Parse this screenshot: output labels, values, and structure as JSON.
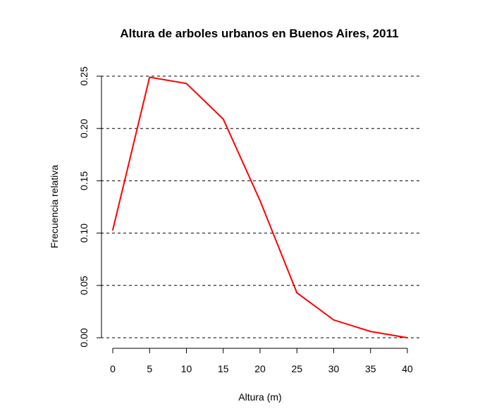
{
  "chart_data": {
    "type": "line",
    "title": "Altura de arboles urbanos en Buenos Aires, 2011",
    "xlabel": "Altura (m)",
    "ylabel": "Frecuencia relativa",
    "x": [
      0,
      5,
      10,
      15,
      20,
      25,
      30,
      35,
      40
    ],
    "series": [
      {
        "values": [
          0.103,
          0.249,
          0.243,
          0.209,
          0.131,
          0.043,
          0.017,
          0.006,
          0.0
        ],
        "color": "#ff0000"
      }
    ],
    "xlim": [
      0,
      40
    ],
    "ylim": [
      0,
      0.25
    ],
    "x_ticks": [
      "0",
      "5",
      "10",
      "15",
      "20",
      "25",
      "30",
      "35",
      "40"
    ],
    "y_ticks": [
      "0.00",
      "0.05",
      "0.10",
      "0.15",
      "0.20",
      "0.25"
    ],
    "y_tick_values": [
      0,
      0.05,
      0.1,
      0.15,
      0.2,
      0.25
    ],
    "gridlines": "horizontal dashed",
    "legend": "none"
  }
}
